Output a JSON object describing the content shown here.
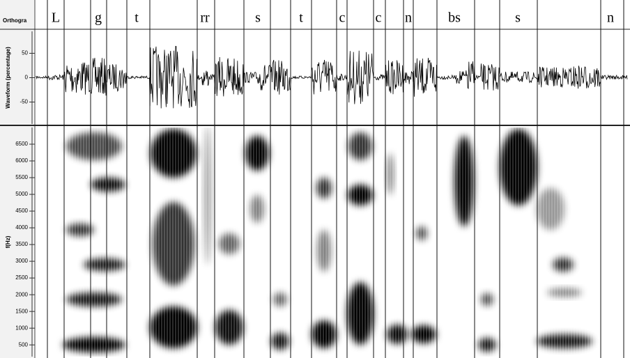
{
  "tier": {
    "label": "Orthogra",
    "segments": [
      "L",
      "g",
      "t",
      "rr",
      "s",
      "t",
      "c",
      "c",
      "n",
      "bs",
      "s",
      "n"
    ]
  },
  "chart_data": [
    {
      "type": "waveform",
      "y_label": "Waveform (percentage)",
      "ylim": [
        -95,
        95
      ],
      "yticks": [
        50,
        0,
        -50
      ]
    },
    {
      "type": "spectrogram",
      "y_label": "f(Hz)",
      "ylim": [
        150,
        7000
      ],
      "yticks": [
        500,
        1000,
        1500,
        2000,
        2500,
        3000,
        3500,
        4000,
        4500,
        5000,
        5500,
        6000,
        6500
      ]
    }
  ]
}
